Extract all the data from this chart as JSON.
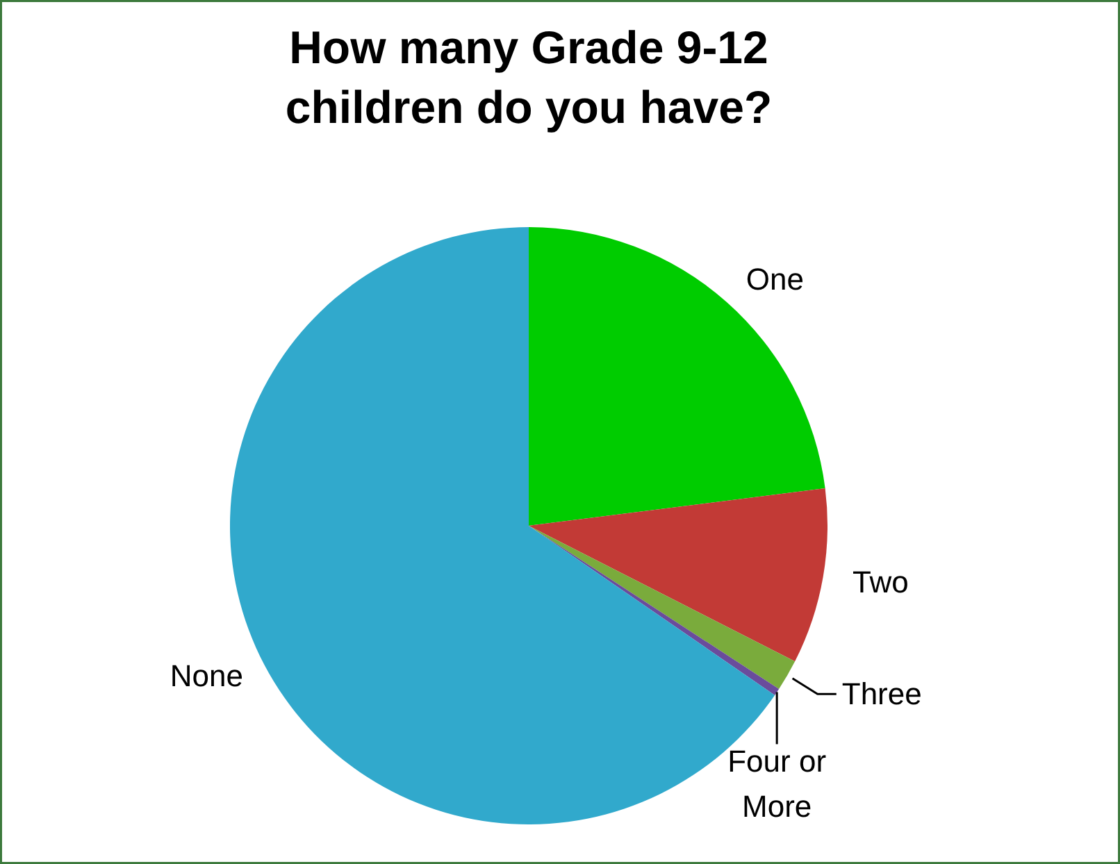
{
  "chart_data": {
    "type": "pie",
    "title": "How many Grade 9-12\nchildren do you have?",
    "categories": [
      "One",
      "Two",
      "Three",
      "Four or\nMore",
      "None"
    ],
    "values": [
      23.0,
      9.5,
      1.7,
      0.4,
      65.4
    ],
    "colors": [
      "#00cc00",
      "#c23a36",
      "#7aab3c",
      "#6a4c9c",
      "#31a9cc"
    ]
  }
}
